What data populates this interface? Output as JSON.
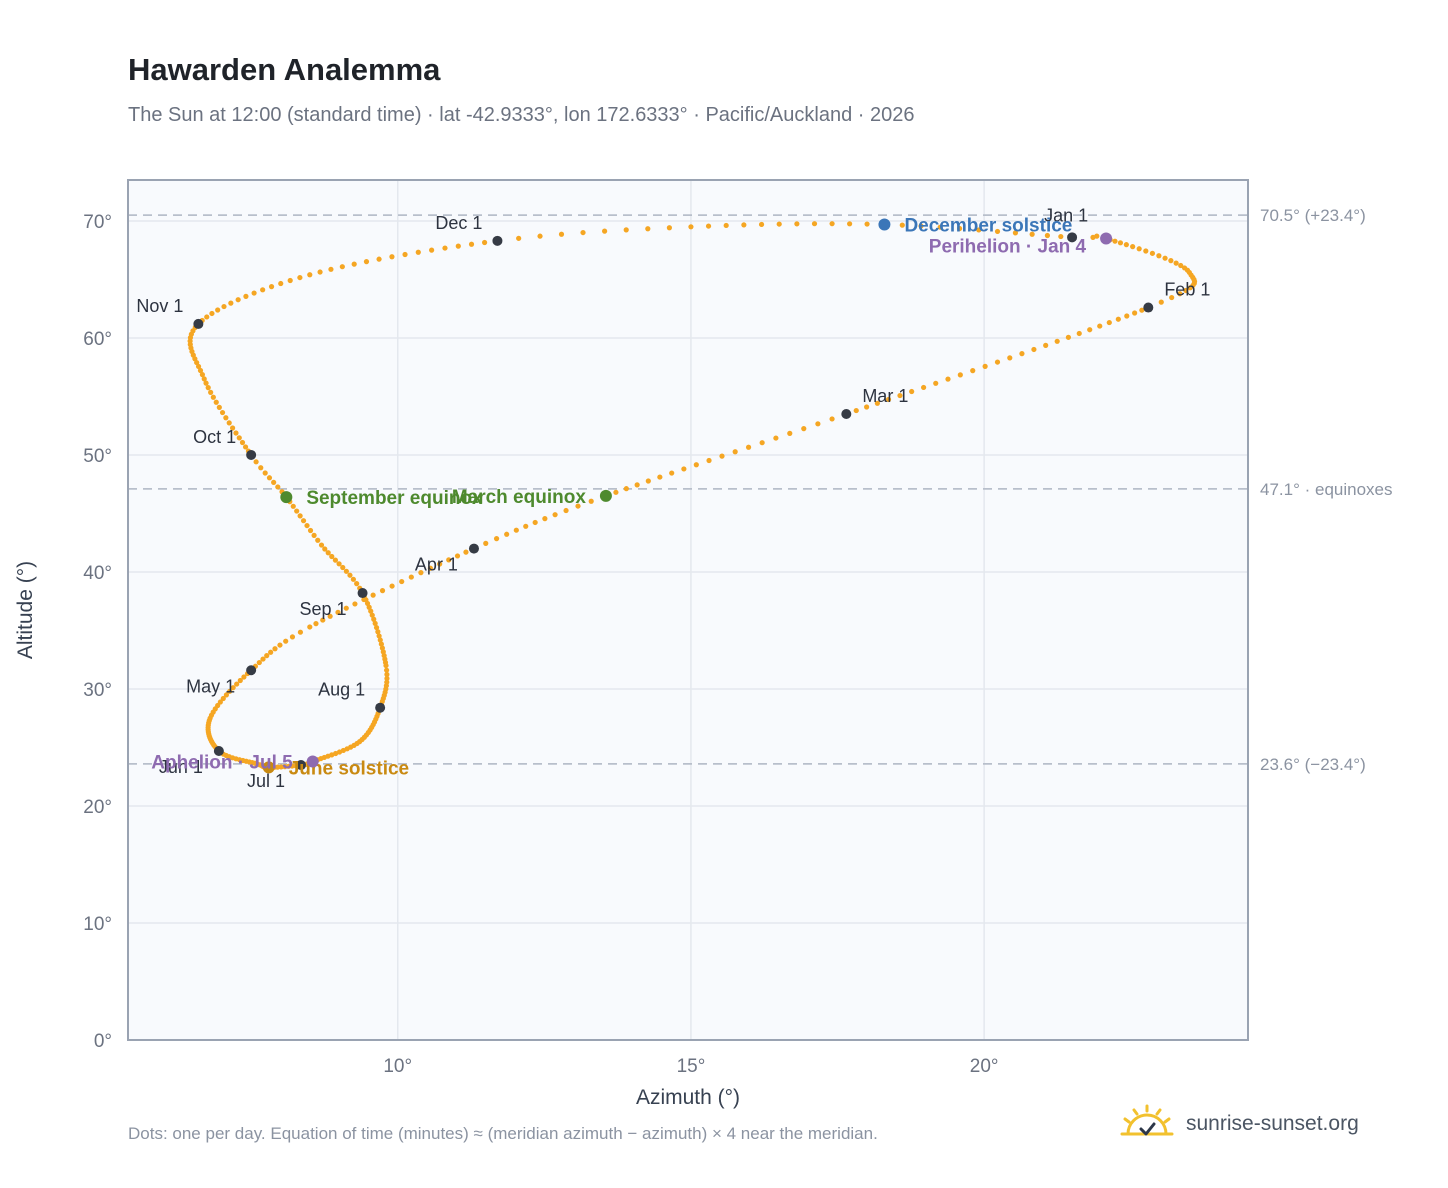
{
  "header": {
    "title": "Hawarden Analemma",
    "subtitle": "The Sun at 12:00 (standard time) · lat -42.9333°, lon 172.6333° · Pacific/Auckland · 2026"
  },
  "footer": {
    "note": "Dots: one per day. Equation of time (minutes) ≈ (meridian azimuth − azimuth) × 4 near the meridian.",
    "brand": "sunrise-sunset.org",
    "brand_icon": "sun-icon"
  },
  "colors": {
    "curve": "#f5a623",
    "month_dot": "#363b45",
    "equinox": "#4e8a2e",
    "december_solstice": "#3b76b8",
    "june_solstice": "#c98a12",
    "apsis": "#8e6bb0",
    "reference_line": "#b8bfcb",
    "plot_bg": "#f8fafd",
    "grid": "#e4e8ee",
    "frame": "#9aa3b2"
  },
  "chart_data": {
    "type": "scatter",
    "xlabel": "Azimuth (°)",
    "ylabel": "Altitude (°)",
    "xlim": [
      5.4,
      24.5
    ],
    "ylim": [
      0,
      73.5
    ],
    "x_ticks": [
      {
        "value": 10,
        "label": "10°"
      },
      {
        "value": 15,
        "label": "15°"
      },
      {
        "value": 20,
        "label": "20°"
      }
    ],
    "y_ticks": [
      {
        "value": 0,
        "label": "0°"
      },
      {
        "value": 10,
        "label": "10°"
      },
      {
        "value": 20,
        "label": "20°"
      },
      {
        "value": 30,
        "label": "30°"
      },
      {
        "value": 40,
        "label": "40°"
      },
      {
        "value": 50,
        "label": "50°"
      },
      {
        "value": 60,
        "label": "60°"
      },
      {
        "value": 70,
        "label": "70°"
      }
    ],
    "grid": true,
    "series": [
      {
        "name": "",
        "style": "one dot per day",
        "anchors": [
          {
            "doy": 1,
            "x": 21.5,
            "y": 68.6
          },
          {
            "doy": 4,
            "x": 22.08,
            "y": 68.5
          },
          {
            "doy": 20,
            "x": 23.5,
            "y": 65.6
          },
          {
            "doy": 32,
            "x": 22.8,
            "y": 62.6
          },
          {
            "doy": 60,
            "x": 17.65,
            "y": 53.5
          },
          {
            "doy": 79,
            "x": 13.55,
            "y": 46.5
          },
          {
            "doy": 91,
            "x": 11.3,
            "y": 42.0
          },
          {
            "doy": 110,
            "x": 8.5,
            "y": 35.3
          },
          {
            "doy": 121,
            "x": 7.5,
            "y": 31.6
          },
          {
            "doy": 135,
            "x": 6.8,
            "y": 27.5
          },
          {
            "doy": 152,
            "x": 6.95,
            "y": 24.7
          },
          {
            "doy": 165,
            "x": 7.6,
            "y": 23.6
          },
          {
            "doy": 172,
            "x": 7.8,
            "y": 23.3
          },
          {
            "doy": 182,
            "x": 8.35,
            "y": 23.5
          },
          {
            "doy": 186,
            "x": 8.55,
            "y": 23.8
          },
          {
            "doy": 200,
            "x": 9.35,
            "y": 25.5
          },
          {
            "doy": 213,
            "x": 9.7,
            "y": 28.4
          },
          {
            "doy": 225,
            "x": 9.8,
            "y": 32.0
          },
          {
            "doy": 244,
            "x": 9.4,
            "y": 38.2
          },
          {
            "doy": 256,
            "x": 8.7,
            "y": 42.3
          },
          {
            "doy": 266,
            "x": 8.1,
            "y": 46.4
          },
          {
            "doy": 274,
            "x": 7.5,
            "y": 50.0
          },
          {
            "doy": 290,
            "x": 6.7,
            "y": 56.5
          },
          {
            "doy": 305,
            "x": 6.6,
            "y": 61.2
          },
          {
            "doy": 320,
            "x": 8.5,
            "y": 65.4
          },
          {
            "doy": 335,
            "x": 11.7,
            "y": 68.3
          },
          {
            "doy": 344,
            "x": 15.0,
            "y": 69.5
          },
          {
            "doy": 355,
            "x": 18.3,
            "y": 69.7
          },
          {
            "doy": 366,
            "x": 21.5,
            "y": 68.6
          }
        ]
      }
    ],
    "month_markers": [
      {
        "label": "Jan 1",
        "x": 21.5,
        "y": 68.6,
        "label_pos": "above"
      },
      {
        "label": "Feb 1",
        "x": 22.8,
        "y": 62.6,
        "label_pos": "above-right"
      },
      {
        "label": "Mar 1",
        "x": 17.65,
        "y": 53.5,
        "label_pos": "above-right"
      },
      {
        "label": "Apr 1",
        "x": 11.3,
        "y": 42.0,
        "label_pos": "below-left"
      },
      {
        "label": "May 1",
        "x": 7.5,
        "y": 31.6,
        "label_pos": "below-left"
      },
      {
        "label": "Jun 1",
        "x": 6.95,
        "y": 24.7,
        "label_pos": "below-left"
      },
      {
        "label": "Jul 1",
        "x": 8.35,
        "y": 23.5,
        "label_pos": "below-left"
      },
      {
        "label": "Aug 1",
        "x": 9.7,
        "y": 28.4,
        "label_pos": "above-left"
      },
      {
        "label": "Sep 1",
        "x": 9.4,
        "y": 38.2,
        "label_pos": "below-left"
      },
      {
        "label": "Oct 1",
        "x": 7.5,
        "y": 50.0,
        "label_pos": "above-left"
      },
      {
        "label": "Nov 1",
        "x": 6.6,
        "y": 61.2,
        "label_pos": "above-left"
      },
      {
        "label": "Dec 1",
        "x": 11.7,
        "y": 68.3,
        "label_pos": "above-left"
      }
    ],
    "events": [
      {
        "label": "December solstice",
        "x": 18.3,
        "y": 69.7,
        "color_key": "december_solstice",
        "label_pos": "right"
      },
      {
        "label": "Perihelion · Jan 4",
        "x": 22.08,
        "y": 68.5,
        "color_key": "apsis",
        "label_pos": "left-below"
      },
      {
        "label": "March equinox",
        "x": 13.55,
        "y": 46.5,
        "color_key": "equinox",
        "label_pos": "left"
      },
      {
        "label": "September equinox",
        "x": 8.1,
        "y": 46.4,
        "color_key": "equinox",
        "label_pos": "right"
      },
      {
        "label": "June solstice",
        "x": 7.8,
        "y": 23.3,
        "color_key": "june_solstice",
        "label_pos": "right"
      },
      {
        "label": "Aphelion · Jul 5",
        "x": 8.55,
        "y": 23.8,
        "color_key": "apsis",
        "label_pos": "left"
      }
    ],
    "reference_lines": [
      {
        "y": 70.5,
        "label": "70.5° (+23.4°)"
      },
      {
        "y": 47.1,
        "label": "47.1° · equinoxes"
      },
      {
        "y": 23.6,
        "label": "23.6° (−23.4°)"
      }
    ]
  }
}
